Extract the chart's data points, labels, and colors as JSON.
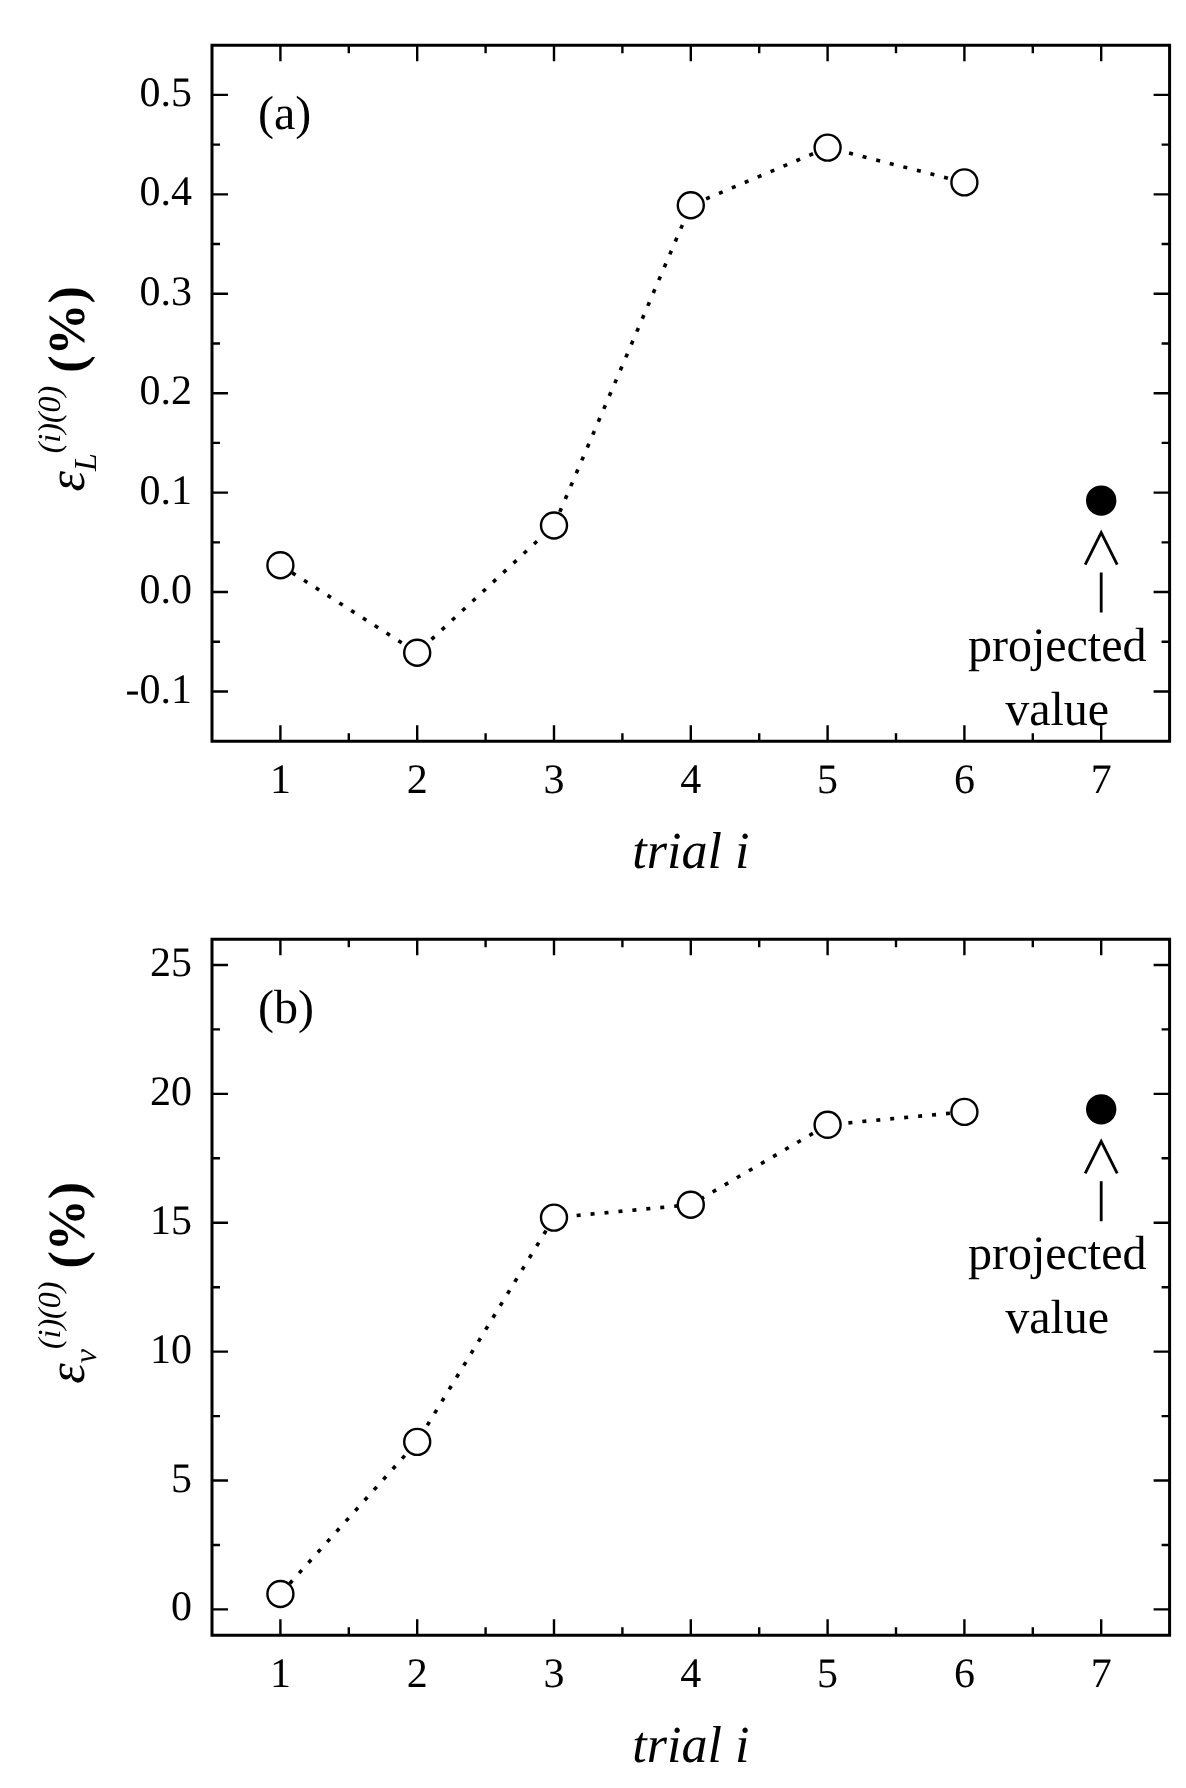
{
  "chart_data": [
    {
      "type": "line",
      "xlabel": "trial i",
      "ylabel": "ε$_{L}$$^{(i)(0)}$ (%)",
      "xlim": [
        0.5,
        7.5
      ],
      "xticks": [
        1,
        2,
        3,
        4,
        5,
        6,
        7
      ],
      "ylim": [
        -0.15,
        0.55
      ],
      "yticks": [
        -0.1,
        {
          "value": 0,
          "label": "0.0"
        },
        0.1,
        0.2,
        0.3,
        0.4,
        0.5
      ],
      "grid": false,
      "marker": "circle",
      "series": [
        {
          "color": "#000000",
          "line_style": "dotted",
          "x": [
            1,
            2,
            3,
            4,
            5,
            6
          ],
          "values": [
            0.027,
            -0.061,
            0.067,
            0.389,
            0.447,
            0.412
          ]
        },
        {
          "type": "scatter",
          "color": "#000000",
          "x": [
            7
          ],
          "values": [
            0.092
          ]
        }
      ],
      "annotations": [
        "(a)",
        {
          "text": "projected value",
          "x": 7,
          "y": 0.092
        }
      ]
    },
    {
      "type": "line",
      "xlabel": "trial i",
      "ylabel": "ε$_{v}$$^{(i)(0)}$ (%)",
      "xlim": [
        0.5,
        7.5
      ],
      "xticks": [
        1,
        2,
        3,
        4,
        5,
        6,
        7
      ],
      "ylim": [
        -1,
        26
      ],
      "yticks": [
        0,
        5,
        10,
        15,
        20,
        25
      ],
      "grid": false,
      "marker": "circle",
      "series": [
        {
          "color": "#000000",
          "line_style": "dotted",
          "x": [
            1,
            2,
            3,
            4,
            5,
            6
          ],
          "values": [
            0.6,
            6.5,
            15.2,
            15.7,
            18.8,
            19.3
          ]
        },
        {
          "type": "scatter",
          "color": "#000000",
          "x": [
            7
          ],
          "values": [
            19.4
          ]
        }
      ],
      "annotations": [
        "(b)",
        {
          "text": "projected value",
          "x": 7,
          "y": 19.4
        }
      ]
    }
  ]
}
